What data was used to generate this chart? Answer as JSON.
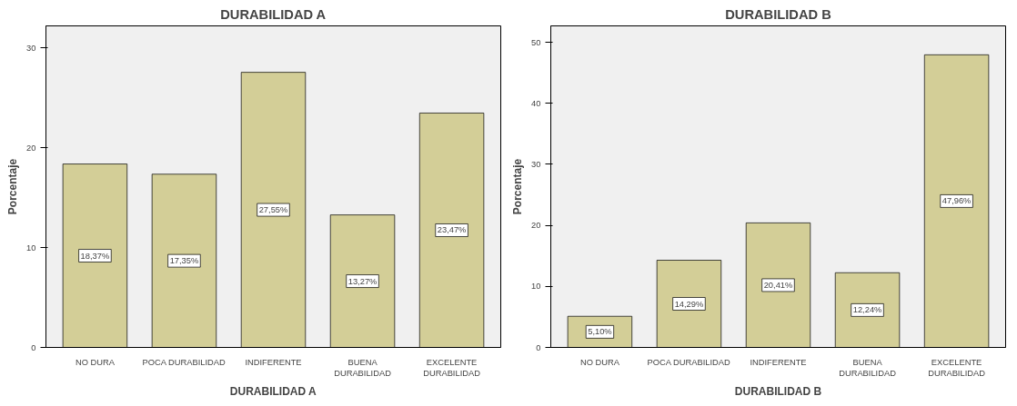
{
  "chart_data": [
    {
      "type": "bar",
      "title": "DURABILIDAD A",
      "xlabel": "DURABILIDAD A",
      "ylabel": "Porcentaje",
      "categories": [
        "NO DURA",
        "POCA DURABILIDAD",
        "INDIFERENTE",
        "BUENA DURABILIDAD",
        "EXCELENTE DURABILIDAD"
      ],
      "values": [
        18.37,
        17.35,
        27.55,
        13.27,
        23.47
      ],
      "value_labels": [
        "18,37%",
        "17,35%",
        "27,55%",
        "13,27%",
        "23,47%"
      ],
      "color": "#d3ce97",
      "ylim": [
        0,
        32.2
      ],
      "yticks": [
        0,
        10,
        20,
        30
      ],
      "grid": false
    },
    {
      "type": "bar",
      "title": "DURABILIDAD B",
      "xlabel": "DURABILIDAD B",
      "ylabel": "Porcentaje",
      "categories": [
        "NO DURA",
        "POCA DURABILIDAD",
        "INDIFERENTE",
        "BUENA DURABILIDAD",
        "EXCELENTE DURABILIDAD"
      ],
      "values": [
        5.1,
        14.29,
        20.41,
        12.24,
        47.96
      ],
      "value_labels": [
        "5,10%",
        "14,29%",
        "20,41%",
        "12,24%",
        "47,96%"
      ],
      "color": "#d3ce97",
      "ylim": [
        0,
        52.7
      ],
      "yticks": [
        0,
        10,
        20,
        30,
        40,
        50
      ],
      "grid": false
    }
  ]
}
